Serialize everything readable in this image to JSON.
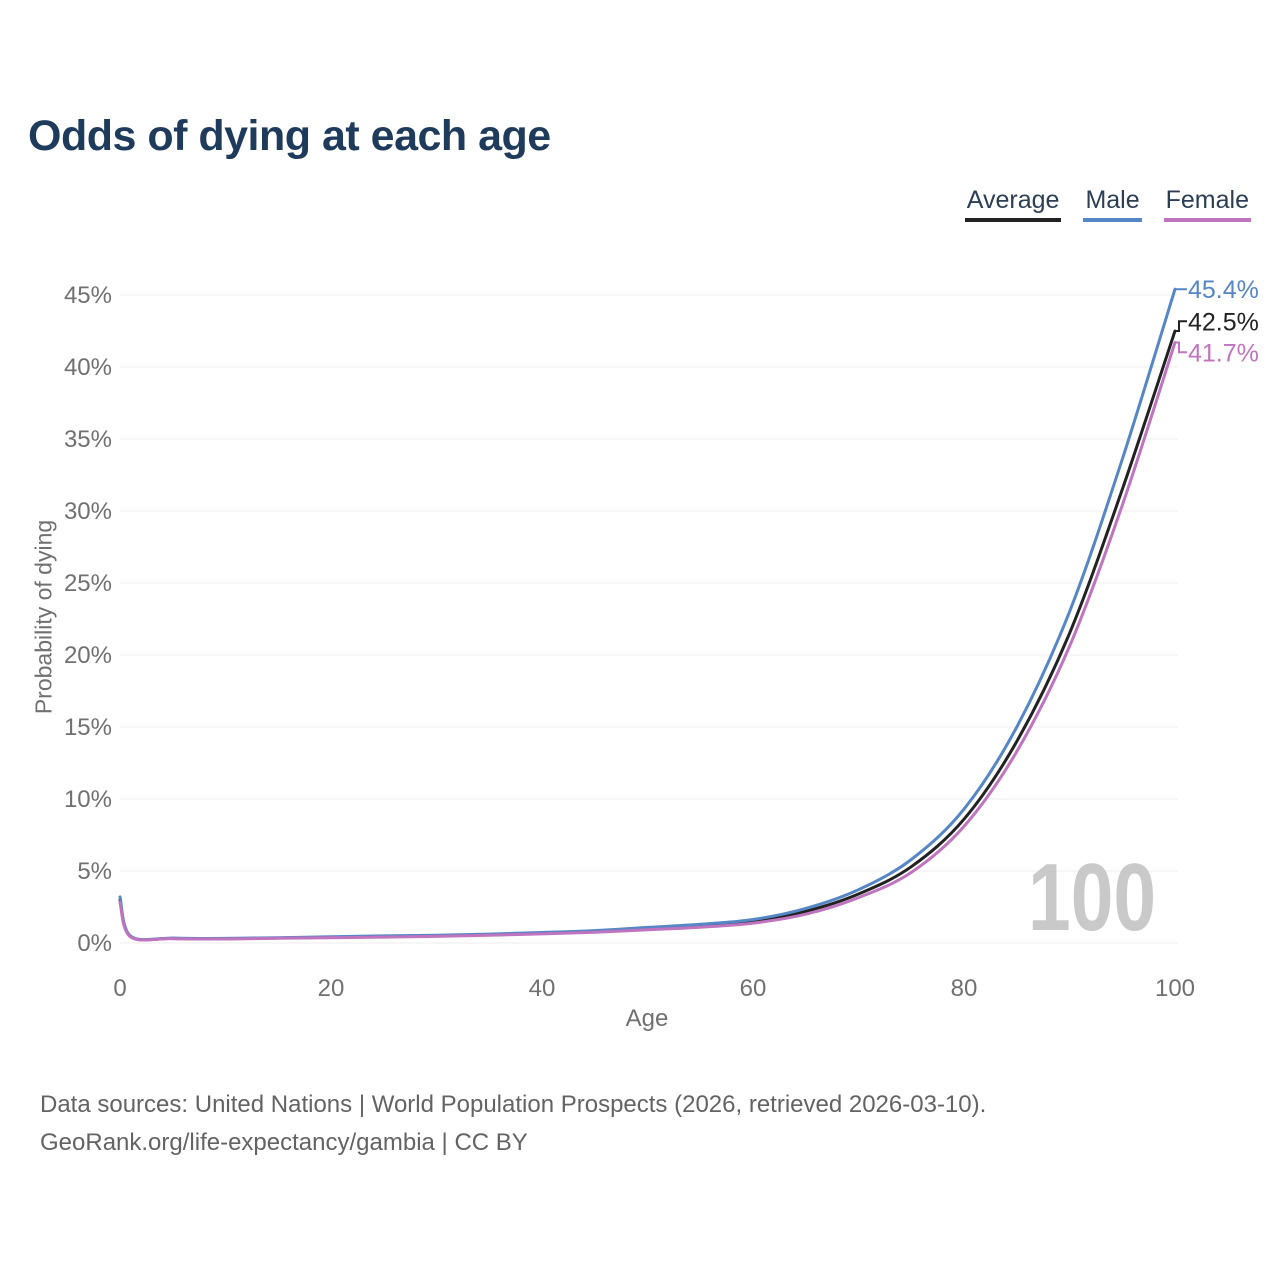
{
  "header": {
    "title": "Odds of dying at each age"
  },
  "legend": {
    "items": [
      {
        "label": "Average",
        "color": "#222222"
      },
      {
        "label": "Male",
        "color": "#5586c5"
      },
      {
        "label": "Female",
        "color": "#bf74bf"
      }
    ]
  },
  "chart_data": {
    "type": "line",
    "title": "Odds of dying at each age",
    "xlabel": "Age",
    "ylabel": "Probability of dying",
    "xlim": [
      0,
      100
    ],
    "ylim": [
      0,
      45
    ],
    "xticks": [
      0,
      20,
      40,
      60,
      80,
      100
    ],
    "yticks": [
      0,
      5,
      10,
      15,
      20,
      25,
      30,
      35,
      40,
      45
    ],
    "ytick_suffix": "%",
    "grid": "horizontal",
    "legend_position": "top-right",
    "annotation": "100",
    "x": [
      0,
      1,
      5,
      10,
      15,
      20,
      25,
      30,
      35,
      40,
      45,
      50,
      55,
      60,
      65,
      70,
      75,
      80,
      85,
      90,
      95,
      100
    ],
    "series": [
      {
        "name": "Average",
        "color": "#222222",
        "end_label": "42.5%",
        "values": [
          3.0,
          0.45,
          0.32,
          0.3,
          0.35,
          0.4,
          0.45,
          0.5,
          0.58,
          0.68,
          0.8,
          1.0,
          1.2,
          1.5,
          2.2,
          3.4,
          5.3,
          8.6,
          14.0,
          21.5,
          31.5,
          42.5
        ]
      },
      {
        "name": "Male",
        "color": "#5586c5",
        "end_label": "45.4%",
        "values": [
          3.2,
          0.48,
          0.34,
          0.32,
          0.37,
          0.43,
          0.49,
          0.54,
          0.62,
          0.73,
          0.86,
          1.08,
          1.3,
          1.63,
          2.4,
          3.7,
          5.8,
          9.3,
          15.0,
          23.0,
          33.6,
          45.4
        ]
      },
      {
        "name": "Female",
        "color": "#bf74bf",
        "end_label": "41.7%",
        "values": [
          2.8,
          0.42,
          0.3,
          0.28,
          0.33,
          0.37,
          0.41,
          0.46,
          0.54,
          0.63,
          0.74,
          0.92,
          1.1,
          1.38,
          2.0,
          3.15,
          4.9,
          8.1,
          13.3,
          20.6,
          30.4,
          41.7
        ]
      }
    ]
  },
  "footer": {
    "line1": "Data sources: United Nations | World Population Prospects (2026, retrieved 2026-03-10).",
    "line2": "GeoRank.org/life-expectancy/gambia | CC BY"
  }
}
